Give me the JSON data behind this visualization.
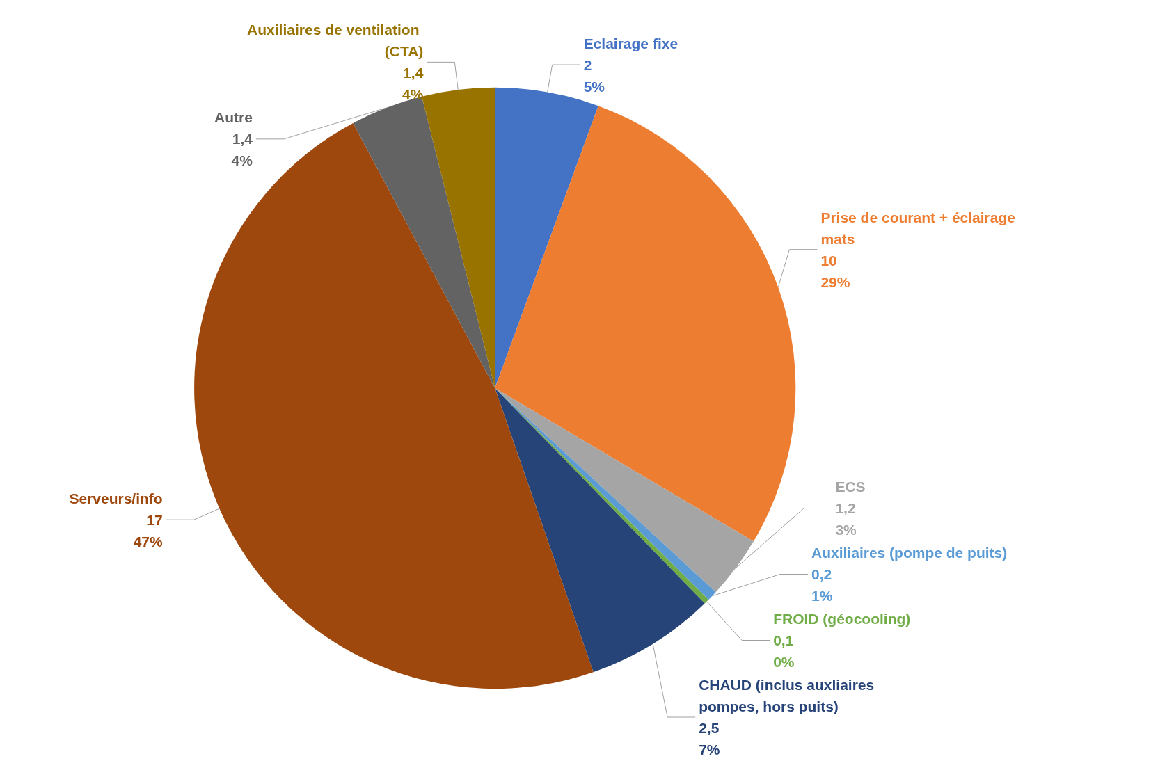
{
  "chart_data": {
    "type": "pie",
    "categories": [
      "Eclairage fixe",
      "Prise de courant + éclairage mats",
      "ECS",
      "Auxiliaires (pompe de puits)",
      "FROID (géocooling)",
      "CHAUD (inclus auxliaires pompes, hors puits)",
      "Serveurs/info",
      "Autre",
      "Auxiliaires de ventilation (CTA)"
    ],
    "values": [
      2,
      10,
      1.2,
      0.2,
      0.1,
      2.5,
      17,
      1.4,
      1.4
    ],
    "value_labels": [
      "2\n5%",
      "10\n29%",
      "1,2\n3%",
      "0,2\n1%",
      "0,1\n0%",
      "2,5\n7%",
      "17\n47%",
      "1,4\n4%",
      "1,4\n4%"
    ],
    "colors": [
      "#4472c4",
      "#ed7d31",
      "#a5a5a5",
      "#5b9bd5",
      "#70ad47",
      "#264478",
      "#9e480e",
      "#636363",
      "#997300"
    ],
    "legend": false
  }
}
